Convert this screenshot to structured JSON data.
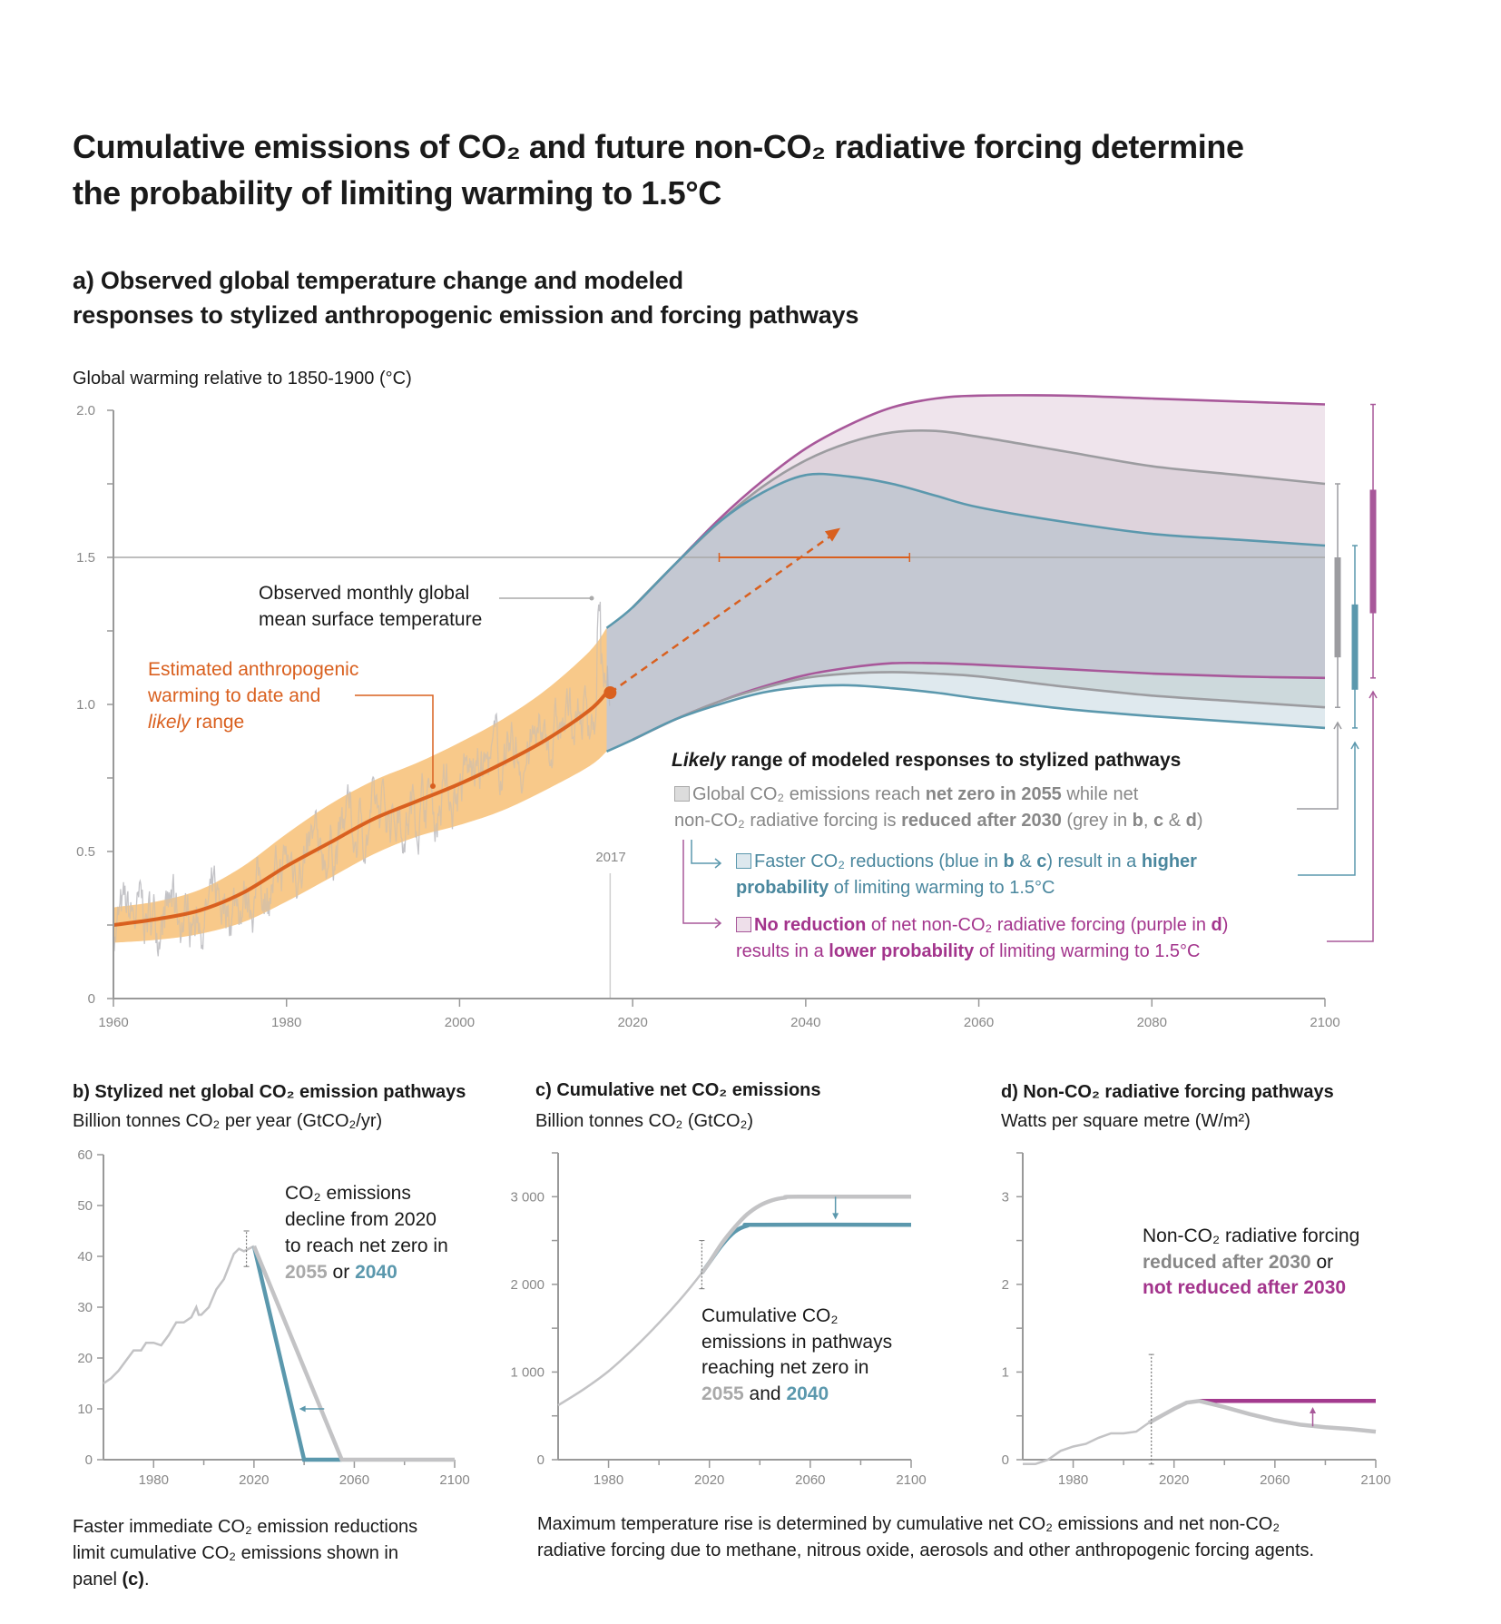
{
  "title": [
    "Cumulative emissions of CO₂ and future non-CO₂ radiative forcing determine",
    "the probability of limiting warming to 1.5°C"
  ],
  "panel_a": {
    "heading": [
      "a) Observed global temperature change and modeled",
      "responses to stylized anthropogenic emission and forcing pathways"
    ],
    "ylabel": "Global warming relative to 1850-1900 (°C)",
    "observed_label": [
      "Observed monthly global",
      "mean surface temperature"
    ],
    "estimated_label": [
      [
        {
          "t": "Estimated anthropogenic"
        }
      ],
      [
        {
          "t": "warming to date and"
        }
      ],
      [
        {
          "t": "likely",
          "i": 1
        },
        {
          "t": " range"
        }
      ]
    ],
    "year_marker": "2017",
    "legend_title": [
      [
        {
          "t": "Likely",
          "i": 1
        },
        {
          "t": " range of modeled responses to stylized pathways"
        }
      ]
    ],
    "legend_grey": [
      [
        {
          "box": "grey"
        },
        {
          "t": "Global CO₂ emissions reach "
        },
        {
          "t": "net zero in 2055",
          "b": 1
        },
        {
          "t": " while net"
        }
      ],
      [
        {
          "t": "non-CO₂ radiative forcing is "
        },
        {
          "t": "reduced after 2030",
          "b": 1
        },
        {
          "t": " (grey in "
        },
        {
          "t": "b",
          "b": 1
        },
        {
          "t": ", "
        },
        {
          "t": "c",
          "b": 1
        },
        {
          "t": " & "
        },
        {
          "t": "d",
          "b": 1
        },
        {
          "t": ")"
        }
      ]
    ],
    "legend_blue": [
      [
        {
          "box": "blue"
        },
        {
          "t": "Faster CO₂ reductions (blue in "
        },
        {
          "t": "b",
          "b": 1
        },
        {
          "t": " & "
        },
        {
          "t": "c",
          "b": 1
        },
        {
          "t": ") result in a "
        },
        {
          "t": "higher",
          "b": 1
        }
      ],
      [
        {
          "t": "probability",
          "b": 1
        },
        {
          "t": " of limiting warming to 1.5°C"
        }
      ]
    ],
    "legend_purple": [
      [
        {
          "box": "purple"
        },
        {
          "t": "No reduction",
          "b": 1
        },
        {
          "t": " of net non-CO₂ radiative forcing (purple in "
        },
        {
          "t": "d",
          "b": 1
        },
        {
          "t": ")"
        }
      ],
      [
        {
          "t": "results in a "
        },
        {
          "t": "lower probability",
          "b": 1
        },
        {
          "t": " of limiting warming to 1.5°C"
        }
      ]
    ]
  },
  "panel_b": {
    "heading": "b) Stylized net global CO₂ emission pathways",
    "subtitle": "Billion tonnes CO₂ per year (GtCO₂/yr)",
    "annotation": [
      [
        {
          "t": "CO₂ emissions"
        }
      ],
      [
        {
          "t": "decline from 2020"
        }
      ],
      [
        {
          "t": "to reach net zero in"
        }
      ],
      [
        {
          "t": "2055",
          "b": 1,
          "c": "grey_text_light"
        },
        {
          "t": " or "
        },
        {
          "t": "2040",
          "b": 1,
          "c": "blue"
        }
      ]
    ]
  },
  "panel_c": {
    "heading": "c) Cumulative net CO₂ emissions",
    "subtitle": "Billion tonnes CO₂ (GtCO₂)",
    "annotation": [
      [
        {
          "t": "Cumulative CO₂"
        }
      ],
      [
        {
          "t": "emissions in pathways"
        }
      ],
      [
        {
          "t": "reaching net zero in"
        }
      ],
      [
        {
          "t": "2055",
          "b": 1,
          "c": "grey_text_light"
        },
        {
          "t": " and "
        },
        {
          "t": "2040",
          "b": 1,
          "c": "blue"
        }
      ]
    ]
  },
  "panel_d": {
    "heading": "d) Non-CO₂ radiative forcing pathways",
    "subtitle": "Watts per square metre (W/m²)",
    "annotation": [
      [
        {
          "t": "Non-CO₂ radiative forcing"
        }
      ],
      [
        {
          "t": "reduced after 2030",
          "b": 1,
          "c": "grey_text"
        },
        {
          "t": " or"
        }
      ],
      [
        {
          "t": "not reduced after 2030",
          "b": 1,
          "c": "purple_text"
        }
      ]
    ]
  },
  "captions": {
    "left": [
      [
        {
          "t": "Faster immediate CO₂ emission reductions"
        }
      ],
      [
        {
          "t": "limit cumulative CO₂ emissions shown in"
        }
      ],
      [
        {
          "t": "panel "
        },
        {
          "t": "(c)",
          "b": 1
        },
        {
          "t": "."
        }
      ]
    ],
    "right": [
      [
        {
          "t": "Maximum temperature rise is determined by cumulative net CO₂ emissions and net non-CO₂"
        }
      ],
      [
        {
          "t": "radiative forcing due to methane, nitrous oxide, aerosols and other anthropogenic forcing agents."
        }
      ]
    ]
  },
  "colors": {
    "orange": "#d9601f",
    "orange_band": "#f8c98a",
    "observed": "#b9b9bd",
    "purple": "#a8589a",
    "purple_text": "#a3348c",
    "purple_d": "#a33a8e",
    "grey_line": "#9c9ca0",
    "grey_text": "#878787",
    "grey_text_light": "#a9a9a9",
    "grey_path": "#c3c3c5",
    "blue": "#5b98ad",
    "blue_text": "#4a879e",
    "fill_purple": "#efe4ec",
    "fill_grey": "#ded3dc",
    "fill_core": "#c4c8d2",
    "fill_mid": "#cdd9dc",
    "fill_low": "#dfe9ee",
    "axis": "#999999",
    "tick_text": "#888888"
  },
  "chart_data": [
    {
      "id": "a",
      "type": "line",
      "title": "Observed global temperature change and modeled responses to stylized anthropogenic emission and forcing pathways",
      "ylabel": "Global warming relative to 1850-1900 (°C)",
      "xlim": [
        1960,
        2100
      ],
      "ylim": [
        0,
        2.0
      ],
      "x_ticks": [
        "1960",
        "1980",
        "2000",
        "2020",
        "2040",
        "2060",
        "2080",
        "2100"
      ],
      "y_ticks": [
        "0",
        "0.5",
        "1.0",
        "1.5",
        "2.0"
      ],
      "reference_line": 1.5,
      "anthropogenic": {
        "years": [
          1960,
          1965,
          1970,
          1975,
          1980,
          1985,
          1990,
          1995,
          2000,
          2005,
          2010,
          2015,
          2017
        ],
        "central": [
          0.25,
          0.27,
          0.3,
          0.36,
          0.45,
          0.53,
          0.61,
          0.67,
          0.73,
          0.8,
          0.88,
          0.98,
          1.04
        ],
        "lower": [
          0.19,
          0.2,
          0.22,
          0.26,
          0.33,
          0.41,
          0.49,
          0.55,
          0.59,
          0.64,
          0.71,
          0.79,
          0.84
        ],
        "upper": [
          0.31,
          0.33,
          0.37,
          0.45,
          0.56,
          0.66,
          0.74,
          0.8,
          0.87,
          0.95,
          1.05,
          1.18,
          1.26
        ]
      },
      "projection_arrow": {
        "from": [
          2017,
          1.04
        ],
        "to": [
          2044,
          1.6
        ]
      },
      "crossing_range_1_5": [
        2030,
        2052
      ],
      "pathways": {
        "years": [
          2017,
          2020,
          2025,
          2030,
          2035,
          2040,
          2045,
          2050,
          2055,
          2060,
          2070,
          2080,
          2090,
          2100
        ],
        "purple_upper": [
          1.26,
          1.33,
          1.48,
          1.63,
          1.76,
          1.87,
          1.95,
          2.01,
          2.04,
          2.05,
          2.05,
          2.04,
          2.03,
          2.02
        ],
        "grey_upper": [
          1.26,
          1.33,
          1.48,
          1.62,
          1.74,
          1.83,
          1.89,
          1.925,
          1.93,
          1.91,
          1.86,
          1.81,
          1.78,
          1.75
        ],
        "blue_upper": [
          1.26,
          1.33,
          1.48,
          1.62,
          1.72,
          1.78,
          1.775,
          1.75,
          1.71,
          1.67,
          1.62,
          1.58,
          1.56,
          1.54
        ],
        "purple_lower": [
          0.84,
          0.88,
          0.95,
          1.01,
          1.06,
          1.1,
          1.125,
          1.14,
          1.14,
          1.135,
          1.12,
          1.105,
          1.095,
          1.09
        ],
        "grey_lower": [
          0.84,
          0.88,
          0.95,
          1.01,
          1.055,
          1.09,
          1.105,
          1.11,
          1.105,
          1.095,
          1.06,
          1.03,
          1.01,
          0.99
        ],
        "blue_lower": [
          0.84,
          0.88,
          0.95,
          1.0,
          1.04,
          1.06,
          1.065,
          1.055,
          1.04,
          1.02,
          0.985,
          0.96,
          0.94,
          0.92
        ]
      },
      "range_bars_2100": [
        {
          "name": "grey",
          "whisker": [
            0.99,
            1.75
          ],
          "box": [
            1.16,
            1.5
          ]
        },
        {
          "name": "blue",
          "whisker": [
            0.92,
            1.54
          ],
          "box": [
            1.05,
            1.34
          ]
        },
        {
          "name": "purple",
          "whisker": [
            1.09,
            2.02
          ],
          "box": [
            1.31,
            1.73
          ]
        }
      ]
    },
    {
      "id": "b",
      "type": "line",
      "title": "Stylized net global CO₂ emission pathways",
      "ylabel": "GtCO₂/yr",
      "xlim": [
        1960,
        2100
      ],
      "ylim": [
        0,
        60
      ],
      "x_ticks": [
        "1980",
        "2020",
        "2060",
        "2100"
      ],
      "y_ticks": [
        "0",
        "10",
        "20",
        "30",
        "40",
        "50",
        "60"
      ],
      "series": [
        {
          "name": "historical",
          "x": [
            1960,
            1963,
            1966,
            1969,
            1972,
            1975,
            1977,
            1980,
            1983,
            1986,
            1989,
            1992,
            1995,
            1997,
            1998,
            1999,
            2002,
            2005,
            2008,
            2010,
            2012,
            2014,
            2016,
            2018,
            2020
          ],
          "y": [
            15,
            16,
            17.5,
            19.5,
            21.5,
            21.5,
            23,
            23,
            22.5,
            24.5,
            27,
            27,
            28,
            30,
            28.5,
            28.5,
            30,
            33.5,
            35.5,
            38,
            40.5,
            41.5,
            41,
            41.5,
            42
          ]
        },
        {
          "name": "net zero 2055 (grey)",
          "x": [
            2020,
            2055,
            2100
          ],
          "y": [
            42,
            0,
            0
          ]
        },
        {
          "name": "net zero 2040 (blue)",
          "x": [
            2020,
            2040,
            2055
          ],
          "y": [
            42,
            0,
            0
          ]
        }
      ],
      "error_bar": {
        "x": 2017,
        "range": [
          38,
          45
        ]
      },
      "arrow": {
        "from": [
          2048,
          10
        ],
        "to": [
          2038,
          10
        ]
      }
    },
    {
      "id": "c",
      "type": "line",
      "title": "Cumulative net CO₂ emissions",
      "ylabel": "GtCO₂",
      "xlim": [
        1960,
        2100
      ],
      "ylim": [
        0,
        3500
      ],
      "x_ticks": [
        "1980",
        "2020",
        "2060",
        "2100"
      ],
      "y_ticks": [
        "0",
        "1 000",
        "2 000",
        "3 000"
      ],
      "series": [
        {
          "name": "historical",
          "x": [
            1960,
            1970,
            1980,
            1990,
            2000,
            2010,
            2017
          ],
          "y": [
            620,
            800,
            1010,
            1270,
            1560,
            1880,
            2130
          ]
        },
        {
          "name": "net zero 2055 (grey)",
          "x": [
            2017,
            2020,
            2025,
            2030,
            2035,
            2040,
            2045,
            2050,
            2055,
            2100
          ],
          "y": [
            2130,
            2250,
            2470,
            2650,
            2800,
            2900,
            2960,
            2990,
            3000,
            3000
          ]
        },
        {
          "name": "net zero 2040 (blue)",
          "x": [
            2017,
            2020,
            2025,
            2030,
            2035,
            2040,
            2100
          ],
          "y": [
            2130,
            2250,
            2450,
            2600,
            2670,
            2680,
            2680
          ]
        }
      ],
      "error_bar": {
        "x": 2017,
        "range": [
          1950,
          2500
        ]
      },
      "arrow": {
        "from": [
          2070,
          3000
        ],
        "to": [
          2070,
          2740
        ]
      }
    },
    {
      "id": "d",
      "type": "line",
      "title": "Non-CO₂ radiative forcing pathways",
      "ylabel": "W/m²",
      "xlim": [
        1960,
        2100
      ],
      "ylim": [
        0,
        3.5
      ],
      "x_ticks": [
        "1980",
        "2020",
        "2060",
        "2100"
      ],
      "y_ticks": [
        "0",
        "1",
        "2",
        "3"
      ],
      "series": [
        {
          "name": "historical and reduced after 2030 (grey)",
          "x": [
            1960,
            1965,
            1970,
            1975,
            1980,
            1985,
            1990,
            1995,
            2000,
            2005,
            2010,
            2015,
            2020,
            2025,
            2030,
            2040,
            2050,
            2060,
            2070,
            2080,
            2090,
            2100
          ],
          "y": [
            -0.05,
            -0.05,
            0.0,
            0.1,
            0.15,
            0.18,
            0.25,
            0.3,
            0.3,
            0.32,
            0.42,
            0.5,
            0.58,
            0.65,
            0.67,
            0.6,
            0.52,
            0.45,
            0.4,
            0.37,
            0.35,
            0.32
          ]
        },
        {
          "name": "not reduced after 2030 (purple)",
          "x": [
            2030,
            2100
          ],
          "y": [
            0.67,
            0.67
          ]
        }
      ],
      "error_bar": {
        "x": 2011,
        "range": [
          -0.05,
          1.2
        ]
      },
      "arrow": {
        "from": [
          2075,
          0.38
        ],
        "to": [
          2075,
          0.6
        ]
      }
    }
  ]
}
